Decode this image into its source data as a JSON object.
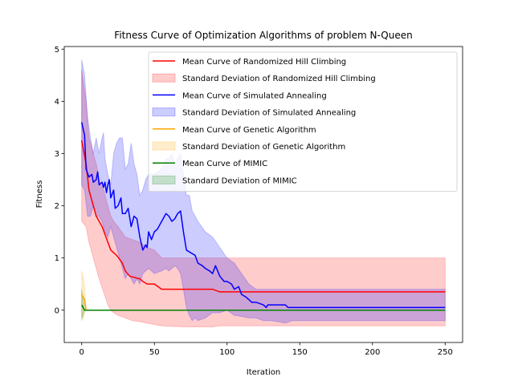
{
  "chart_data": {
    "type": "line",
    "title": "Fitness Curve of Optimization Algorithms of problem N-Queen",
    "xlabel": "Iteration",
    "ylabel": "Fitness",
    "xlim": [
      -12,
      262
    ],
    "ylim": [
      -0.62,
      5.05
    ],
    "xticks": [
      0,
      50,
      100,
      150,
      200,
      250
    ],
    "yticks": [
      0,
      1,
      2,
      3,
      4,
      5
    ],
    "grid": false,
    "legend_position": "upper right",
    "series": [
      {
        "name": "Mean Curve of Randomized Hill Climbing",
        "band_name": "Standard Deviation of Randomized Hill Climbing",
        "color": "#ff0000",
        "band_color": "#ff0000",
        "mean": [
          [
            0,
            3.25
          ],
          [
            3,
            2.8
          ],
          [
            5,
            2.3
          ],
          [
            8,
            2.0
          ],
          [
            10,
            1.8
          ],
          [
            14,
            1.6
          ],
          [
            18,
            1.3
          ],
          [
            20,
            1.15
          ],
          [
            24,
            1.05
          ],
          [
            28,
            0.9
          ],
          [
            30,
            0.75
          ],
          [
            33,
            0.65
          ],
          [
            40,
            0.6
          ],
          [
            42,
            0.55
          ],
          [
            45,
            0.5
          ],
          [
            50,
            0.5
          ],
          [
            55,
            0.4
          ],
          [
            90,
            0.4
          ],
          [
            95,
            0.35
          ],
          [
            250,
            0.35
          ]
        ],
        "upper": [
          [
            0,
            4.6
          ],
          [
            3,
            4.0
          ],
          [
            5,
            3.3
          ],
          [
            8,
            3.0
          ],
          [
            10,
            2.8
          ],
          [
            12,
            2.5
          ],
          [
            15,
            2.3
          ],
          [
            18,
            2.0
          ],
          [
            20,
            1.8
          ],
          [
            22,
            1.7
          ],
          [
            25,
            1.6
          ],
          [
            30,
            1.4
          ],
          [
            35,
            1.35
          ],
          [
            40,
            1.3
          ],
          [
            45,
            1.2
          ],
          [
            50,
            1.15
          ],
          [
            55,
            1.0
          ],
          [
            250,
            1.0
          ]
        ],
        "lower": [
          [
            0,
            1.7
          ],
          [
            3,
            1.6
          ],
          [
            5,
            1.3
          ],
          [
            8,
            1.0
          ],
          [
            10,
            0.8
          ],
          [
            12,
            0.6
          ],
          [
            15,
            0.35
          ],
          [
            18,
            0.1
          ],
          [
            20,
            0.0
          ],
          [
            22,
            -0.05
          ],
          [
            25,
            -0.1
          ],
          [
            30,
            -0.15
          ],
          [
            35,
            -0.2
          ],
          [
            40,
            -0.22
          ],
          [
            45,
            -0.25
          ],
          [
            55,
            -0.3
          ],
          [
            70,
            -0.32
          ],
          [
            90,
            -0.32
          ],
          [
            95,
            -0.3
          ],
          [
            250,
            -0.3
          ]
        ]
      },
      {
        "name": "Mean Curve of Simulated Annealing",
        "band_name": "Standard Deviation of Simulated Annealing",
        "color": "#0000ff",
        "band_color": "#0000ff",
        "mean": [
          [
            0,
            3.6
          ],
          [
            2,
            3.35
          ],
          [
            3,
            2.7
          ],
          [
            5,
            2.55
          ],
          [
            7,
            2.6
          ],
          [
            8,
            2.45
          ],
          [
            10,
            2.5
          ],
          [
            11,
            2.65
          ],
          [
            12,
            2.4
          ],
          [
            14,
            2.45
          ],
          [
            15,
            2.35
          ],
          [
            16,
            2.45
          ],
          [
            17,
            2.25
          ],
          [
            18,
            2.4
          ],
          [
            19,
            2.5
          ],
          [
            20,
            2.15
          ],
          [
            22,
            2.3
          ],
          [
            23,
            1.95
          ],
          [
            25,
            2.0
          ],
          [
            27,
            2.15
          ],
          [
            28,
            1.85
          ],
          [
            30,
            1.85
          ],
          [
            32,
            1.95
          ],
          [
            34,
            1.6
          ],
          [
            36,
            1.8
          ],
          [
            38,
            1.75
          ],
          [
            40,
            1.4
          ],
          [
            42,
            1.15
          ],
          [
            44,
            1.25
          ],
          [
            45,
            1.2
          ],
          [
            46,
            1.5
          ],
          [
            48,
            1.35
          ],
          [
            50,
            1.5
          ],
          [
            52,
            1.55
          ],
          [
            55,
            1.7
          ],
          [
            58,
            1.85
          ],
          [
            60,
            1.8
          ],
          [
            62,
            1.7
          ],
          [
            64,
            1.75
          ],
          [
            66,
            1.85
          ],
          [
            68,
            1.9
          ],
          [
            70,
            1.5
          ],
          [
            72,
            1.15
          ],
          [
            75,
            1.1
          ],
          [
            78,
            1.05
          ],
          [
            80,
            0.9
          ],
          [
            83,
            0.85
          ],
          [
            85,
            0.8
          ],
          [
            88,
            0.75
          ],
          [
            90,
            0.7
          ],
          [
            92,
            0.85
          ],
          [
            95,
            0.65
          ],
          [
            98,
            0.55
          ],
          [
            100,
            0.55
          ],
          [
            103,
            0.5
          ],
          [
            105,
            0.4
          ],
          [
            108,
            0.45
          ],
          [
            110,
            0.3
          ],
          [
            113,
            0.25
          ],
          [
            115,
            0.2
          ],
          [
            117,
            0.15
          ],
          [
            120,
            0.15
          ],
          [
            125,
            0.1
          ],
          [
            127,
            0.05
          ],
          [
            128,
            0.1
          ],
          [
            140,
            0.1
          ],
          [
            142,
            0.05
          ],
          [
            250,
            0.05
          ]
        ],
        "upper": [
          [
            0,
            4.8
          ],
          [
            2,
            4.5
          ],
          [
            4,
            3.7
          ],
          [
            6,
            3.3
          ],
          [
            8,
            3.0
          ],
          [
            10,
            3.3
          ],
          [
            12,
            3.0
          ],
          [
            14,
            3.3
          ],
          [
            15,
            3.4
          ],
          [
            16,
            2.9
          ],
          [
            18,
            2.6
          ],
          [
            20,
            2.4
          ],
          [
            22,
            3.0
          ],
          [
            24,
            3.2
          ],
          [
            26,
            3.3
          ],
          [
            28,
            3.3
          ],
          [
            30,
            2.7
          ],
          [
            32,
            2.8
          ],
          [
            34,
            3.2
          ],
          [
            36,
            2.8
          ],
          [
            38,
            2.6
          ],
          [
            40,
            2.2
          ],
          [
            42,
            2.3
          ],
          [
            44,
            2.5
          ],
          [
            46,
            2.6
          ],
          [
            50,
            2.6
          ],
          [
            55,
            2.7
          ],
          [
            58,
            2.9
          ],
          [
            60,
            2.9
          ],
          [
            62,
            3.0
          ],
          [
            64,
            2.8
          ],
          [
            66,
            2.9
          ],
          [
            68,
            3.0
          ],
          [
            70,
            2.6
          ],
          [
            72,
            2.2
          ],
          [
            74,
            2.2
          ],
          [
            76,
            1.9
          ],
          [
            78,
            1.8
          ],
          [
            80,
            1.7
          ],
          [
            85,
            1.5
          ],
          [
            90,
            1.4
          ],
          [
            95,
            1.2
          ],
          [
            100,
            1.0
          ],
          [
            105,
            0.9
          ],
          [
            110,
            0.7
          ],
          [
            115,
            0.5
          ],
          [
            120,
            0.4
          ],
          [
            250,
            0.4
          ]
        ],
        "lower": [
          [
            0,
            2.4
          ],
          [
            2,
            2.3
          ],
          [
            4,
            1.8
          ],
          [
            6,
            1.8
          ],
          [
            8,
            2.0
          ],
          [
            10,
            1.8
          ],
          [
            12,
            1.8
          ],
          [
            14,
            1.7
          ],
          [
            16,
            1.5
          ],
          [
            18,
            1.4
          ],
          [
            20,
            1.6
          ],
          [
            22,
            1.4
          ],
          [
            24,
            1.2
          ],
          [
            26,
            1.0
          ],
          [
            28,
            0.8
          ],
          [
            30,
            0.6
          ],
          [
            32,
            0.7
          ],
          [
            34,
            0.6
          ],
          [
            36,
            0.5
          ],
          [
            38,
            0.6
          ],
          [
            40,
            0.5
          ],
          [
            42,
            0.7
          ],
          [
            44,
            0.75
          ],
          [
            46,
            0.8
          ],
          [
            48,
            0.75
          ],
          [
            50,
            0.7
          ],
          [
            55,
            0.75
          ],
          [
            58,
            0.8
          ],
          [
            60,
            0.75
          ],
          [
            62,
            0.8
          ],
          [
            64,
            0.85
          ],
          [
            66,
            0.8
          ],
          [
            68,
            0.7
          ],
          [
            70,
            0.4
          ],
          [
            72,
            0.05
          ],
          [
            74,
            -0.1
          ],
          [
            76,
            -0.2
          ],
          [
            78,
            -0.15
          ],
          [
            80,
            -0.2
          ],
          [
            85,
            -0.15
          ],
          [
            90,
            -0.05
          ],
          [
            95,
            -0.05
          ],
          [
            100,
            0.0
          ],
          [
            105,
            -0.1
          ],
          [
            110,
            -0.12
          ],
          [
            115,
            -0.15
          ],
          [
            120,
            -0.15
          ],
          [
            125,
            -0.2
          ],
          [
            130,
            -0.2
          ],
          [
            135,
            -0.22
          ],
          [
            140,
            -0.25
          ],
          [
            145,
            -0.2
          ],
          [
            250,
            -0.2
          ]
        ]
      },
      {
        "name": "Mean Curve of Genetic Algorithm",
        "band_name": "Standard Deviation of Genetic Algorithm",
        "color": "#ffa500",
        "band_color": "#ffa500",
        "mean": [
          [
            0,
            0.3
          ],
          [
            1,
            0.25
          ],
          [
            2,
            0.2
          ],
          [
            3,
            0.0
          ],
          [
            250,
            0.0
          ]
        ],
        "upper": [
          [
            0,
            0.75
          ],
          [
            1,
            0.65
          ],
          [
            2,
            0.45
          ],
          [
            3,
            0.0
          ],
          [
            250,
            0.0
          ]
        ],
        "lower": [
          [
            0,
            -0.1
          ],
          [
            1,
            -0.15
          ],
          [
            2,
            -0.05
          ],
          [
            3,
            0.0
          ],
          [
            250,
            0.0
          ]
        ]
      },
      {
        "name": "Mean Curve of MIMIC",
        "band_name": "Standard Deviation of MIMIC",
        "color": "#008000",
        "band_color": "#008000",
        "mean": [
          [
            0,
            0.1
          ],
          [
            1,
            0.05
          ],
          [
            2,
            0.0
          ],
          [
            250,
            0.0
          ]
        ],
        "upper": [
          [
            0,
            0.4
          ],
          [
            1,
            0.2
          ],
          [
            2,
            0.0
          ],
          [
            250,
            0.0
          ]
        ],
        "lower": [
          [
            0,
            -0.2
          ],
          [
            1,
            -0.1
          ],
          [
            2,
            0.0
          ],
          [
            250,
            0.0
          ]
        ]
      }
    ]
  }
}
